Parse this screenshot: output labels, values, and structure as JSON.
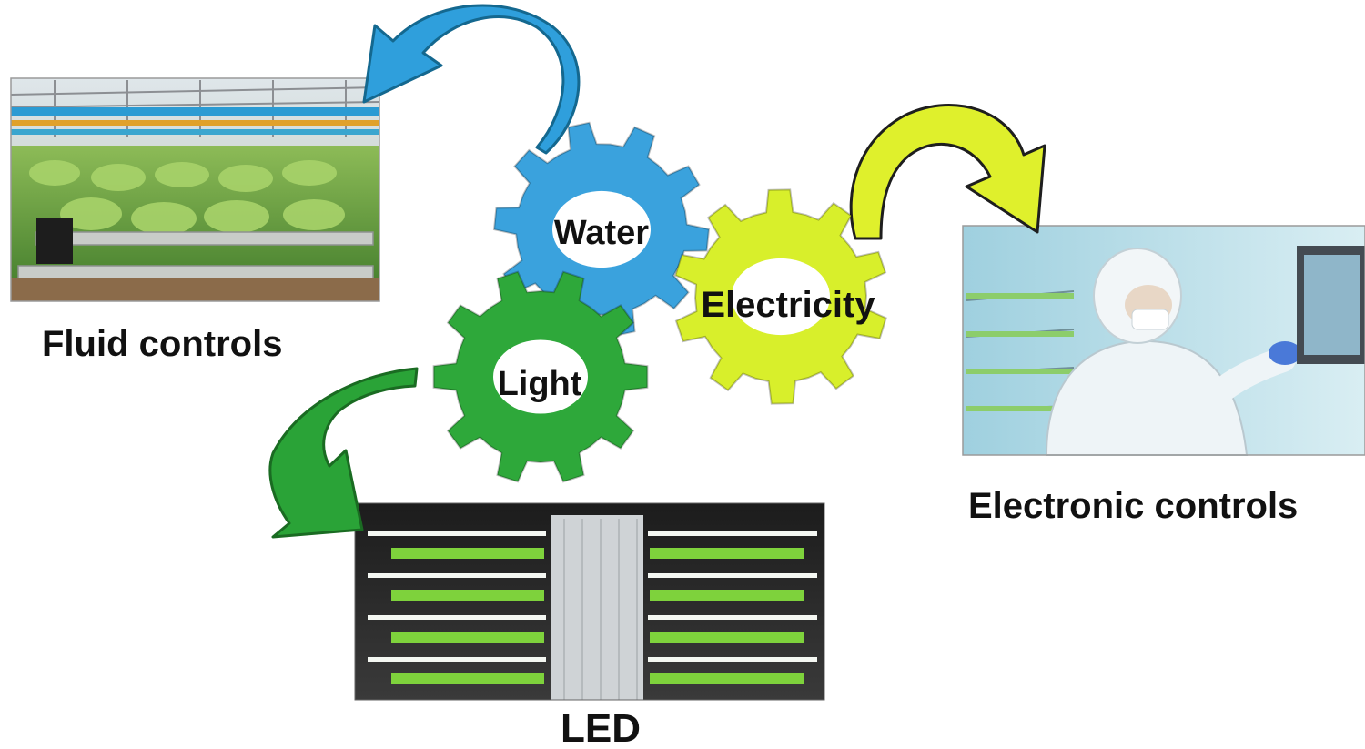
{
  "photos": {
    "fluid": {
      "caption": "Fluid controls",
      "depicts": "greenhouse-lettuce-photo"
    },
    "electronic": {
      "caption": "Electronic controls",
      "depicts": "cleanroom-worker-touchscreen-photo"
    },
    "led": {
      "caption": "LED",
      "depicts": "led-vertical-farm-racks-photo"
    }
  },
  "gears": [
    {
      "key": "water",
      "label": "Water",
      "color": "#3aa2dd"
    },
    {
      "key": "electricity",
      "label": "Electricity",
      "color": "#d8ef2b"
    },
    {
      "key": "light",
      "label": "Light",
      "color": "#2ea83a"
    }
  ],
  "arrows": [
    {
      "from": "water",
      "to": "fluid",
      "color": "#2f9fdc"
    },
    {
      "from": "electricity",
      "to": "electronic",
      "color": "#dff02c"
    },
    {
      "from": "light",
      "to": "led",
      "color": "#2aa337"
    }
  ]
}
